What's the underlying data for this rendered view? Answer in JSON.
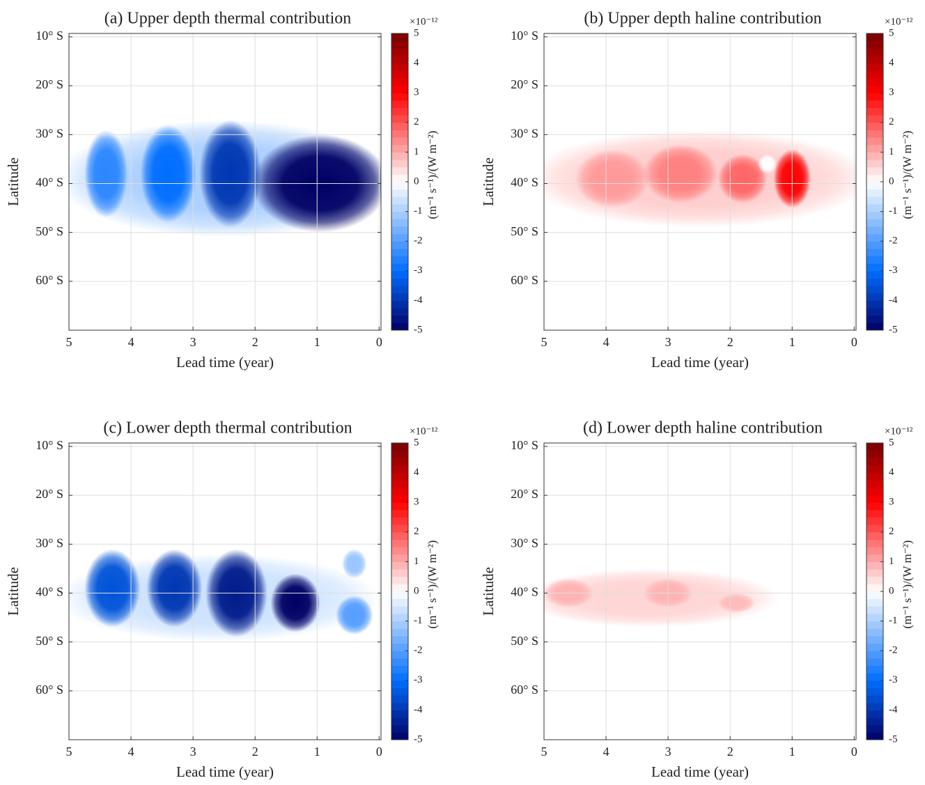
{
  "chart_data": [
    {
      "type": "contour",
      "title": "(a) Upper depth thermal contribution",
      "xlabel": "Lead time (year)",
      "ylabel": "Latitude",
      "xlim": [
        5,
        -0.03
      ],
      "xticks": [
        5,
        4,
        3,
        2,
        1,
        0
      ],
      "ylim": [
        -70,
        -9.3
      ],
      "yticks": [
        {
          "value": -10,
          "label": "10° S"
        },
        {
          "value": -20,
          "label": "20° S"
        },
        {
          "value": -30,
          "label": "30° S"
        },
        {
          "value": -40,
          "label": "40° S"
        },
        {
          "value": -50,
          "label": "50° S"
        },
        {
          "value": -60,
          "label": "60° S"
        }
      ],
      "grid": true,
      "clim": [
        -5,
        5
      ],
      "cticks": [
        -5,
        -4,
        -3,
        -2,
        -1,
        0,
        1,
        2,
        3,
        4,
        5
      ],
      "scale_label": "×10⁻¹²",
      "colorbar_label": "(m⁻¹ s⁻¹)/(W m⁻²)",
      "blobs": {
        "x": [
          2.5,
          4.4,
          3.4,
          2.4,
          0.95
        ],
        "y": [
          -39,
          -38,
          -38,
          -38,
          -40
        ],
        "rx": [
          2.7,
          0.35,
          0.45,
          0.5,
          1.1
        ],
        "ry": [
          12,
          9,
          10,
          11,
          10
        ],
        "values": [
          -1,
          -2.5,
          -3,
          -4,
          -6
        ]
      }
    },
    {
      "type": "contour",
      "title": "(b) Upper depth haline contribution",
      "xlabel": "Lead time (year)",
      "ylabel": "Latitude",
      "xlim": [
        5,
        -0.03
      ],
      "xticks": [
        5,
        4,
        3,
        2,
        1,
        0
      ],
      "ylim": [
        -70,
        -9.3
      ],
      "yticks": [
        {
          "value": -10,
          "label": "10° S"
        },
        {
          "value": -20,
          "label": "20° S"
        },
        {
          "value": -30,
          "label": "30° S"
        },
        {
          "value": -40,
          "label": "40° S"
        },
        {
          "value": -50,
          "label": "50° S"
        },
        {
          "value": -60,
          "label": "60° S"
        }
      ],
      "grid": true,
      "clim": [
        -5,
        5
      ],
      "cticks": [
        -5,
        -4,
        -3,
        -2,
        -1,
        0,
        1,
        2,
        3,
        4,
        5
      ],
      "scale_label": "×10⁻¹²",
      "colorbar_label": "(m⁻¹ s⁻¹)/(W m⁻²)",
      "blobs": {
        "x": [
          2.5,
          3.9,
          2.8,
          1.8,
          1.0,
          1.4
        ],
        "y": [
          -39,
          -39,
          -38,
          -39,
          -39,
          -36
        ],
        "rx": [
          2.8,
          0.6,
          0.6,
          0.4,
          0.3,
          0.15
        ],
        "ry": [
          10,
          6,
          6,
          5,
          6,
          2
        ],
        "values": [
          0.6,
          1.2,
          1.5,
          1.8,
          3,
          0
        ]
      }
    },
    {
      "type": "contour",
      "title": "(c) Lower depth thermal contribution",
      "xlabel": "Lead time (year)",
      "ylabel": "Latitude",
      "xlim": [
        5,
        -0.03
      ],
      "xticks": [
        5,
        4,
        3,
        2,
        1,
        0
      ],
      "ylim": [
        -70,
        -9.3
      ],
      "yticks": [
        {
          "value": -10,
          "label": "10° S"
        },
        {
          "value": -20,
          "label": "20° S"
        },
        {
          "value": -30,
          "label": "30° S"
        },
        {
          "value": -40,
          "label": "40° S"
        },
        {
          "value": -50,
          "label": "50° S"
        },
        {
          "value": -60,
          "label": "60° S"
        }
      ],
      "grid": true,
      "clim": [
        -5,
        5
      ],
      "cticks": [
        -5,
        -4,
        -3,
        -2,
        -1,
        0,
        1,
        2,
        3,
        4,
        5
      ],
      "scale_label": "×10⁻¹²",
      "colorbar_label": "(m⁻¹ s⁻¹)/(W m⁻²)",
      "blobs": {
        "x": [
          2.6,
          4.3,
          3.3,
          2.3,
          1.35,
          0.4,
          0.4
        ],
        "y": [
          -41,
          -39,
          -39,
          -40,
          -42,
          -44.5,
          -34
        ],
        "rx": [
          2.6,
          0.45,
          0.45,
          0.5,
          0.4,
          0.3,
          0.2
        ],
        "ry": [
          9,
          8,
          8,
          9,
          6,
          4,
          3
        ],
        "values": [
          -0.6,
          -3.5,
          -4,
          -4.5,
          -5,
          -2,
          -1.2
        ]
      }
    },
    {
      "type": "contour",
      "title": "(d) Lower depth haline contribution",
      "xlabel": "Lead time (year)",
      "ylabel": "Latitude",
      "xlim": [
        5,
        -0.03
      ],
      "xticks": [
        5,
        4,
        3,
        2,
        1,
        0
      ],
      "ylim": [
        -70,
        -9.3
      ],
      "yticks": [
        {
          "value": -10,
          "label": "10° S"
        },
        {
          "value": -20,
          "label": "20° S"
        },
        {
          "value": -30,
          "label": "30° S"
        },
        {
          "value": -40,
          "label": "40° S"
        },
        {
          "value": -50,
          "label": "50° S"
        },
        {
          "value": -60,
          "label": "60° S"
        }
      ],
      "grid": true,
      "clim": [
        -5,
        5
      ],
      "cticks": [
        -5,
        -4,
        -3,
        -2,
        -1,
        0,
        1,
        2,
        3,
        4,
        5
      ],
      "scale_label": "×10⁻¹²",
      "colorbar_label": "(m⁻¹ s⁻¹)/(W m⁻²)",
      "blobs": {
        "x": [
          3.3,
          4.6,
          3.0,
          1.9
        ],
        "y": [
          -41,
          -40,
          -40,
          -42
        ],
        "rx": [
          2.1,
          0.4,
          0.4,
          0.3
        ],
        "ry": [
          6,
          3,
          3,
          2
        ],
        "values": [
          0.5,
          0.9,
          0.9,
          0.8
        ]
      }
    }
  ]
}
